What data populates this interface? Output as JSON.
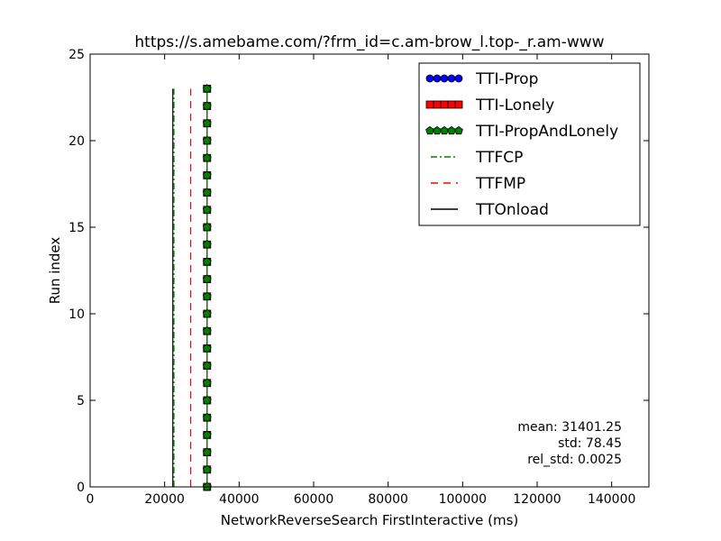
{
  "chart_data": {
    "type": "line",
    "title": "https://s.amebame.com/?frm_id=c.am-brow_l.top-_r.am-www",
    "xlabel": "NetworkReverseSearch FirstInteractive (ms)",
    "ylabel": "Run index",
    "xlim": [
      0,
      150000
    ],
    "ylim": [
      0,
      25
    ],
    "x_ticks": [
      0,
      20000,
      40000,
      60000,
      80000,
      100000,
      120000,
      140000
    ],
    "x_tick_labels": [
      "0",
      "20000",
      "40000",
      "60000",
      "80000",
      "100000",
      "120000",
      "140000"
    ],
    "y_ticks": [
      0,
      5,
      10,
      15,
      20,
      25
    ],
    "y_tick_labels": [
      "0",
      "5",
      "10",
      "15",
      "20",
      "25"
    ],
    "grid": false,
    "legend_position": "top-right",
    "run_index": [
      0,
      1,
      2,
      3,
      4,
      5,
      6,
      7,
      8,
      9,
      10,
      11,
      12,
      13,
      14,
      15,
      16,
      17,
      18,
      19,
      20,
      21,
      22,
      23
    ],
    "series": [
      {
        "name": "TTI-Prop",
        "style": "circle-markers",
        "color": "#0000ff",
        "values": [
          31400,
          31400,
          31400,
          31400,
          31400,
          31400,
          31400,
          31400,
          31400,
          31400,
          31400,
          31400,
          31400,
          31400,
          31400,
          31400,
          31400,
          31400,
          31400,
          31400,
          31400,
          31400,
          31400,
          31400
        ]
      },
      {
        "name": "TTI-Lonely",
        "style": "square-markers",
        "color": "#ff0000",
        "values": [
          31400,
          31400,
          31400,
          31400,
          31400,
          31400,
          31400,
          31400,
          31400,
          31400,
          31400,
          31400,
          31400,
          31400,
          31400,
          31400,
          31400,
          31400,
          31400,
          31400,
          31400,
          31400,
          31400,
          31400
        ]
      },
      {
        "name": "TTI-PropAndLonely",
        "style": "pentagon-markers",
        "color": "#008000",
        "values": [
          31400,
          31400,
          31400,
          31400,
          31400,
          31400,
          31400,
          31400,
          31400,
          31400,
          31400,
          31400,
          31400,
          31400,
          31400,
          31400,
          31400,
          31400,
          31400,
          31400,
          31400,
          31400,
          31400,
          31400
        ]
      },
      {
        "name": "TTFCP",
        "style": "dash-dot-line",
        "color": "#008000",
        "values": [
          22500,
          22500,
          22500,
          22500,
          22500,
          22500,
          22500,
          22500,
          22500,
          22500,
          22500,
          22500,
          22500,
          22500,
          22500,
          22500,
          22500,
          22500,
          22500,
          22500,
          22500,
          22500,
          22500,
          22500
        ]
      },
      {
        "name": "TTFMP",
        "style": "dashed-line",
        "color": "#ff0000",
        "values": [
          27000,
          27000,
          27000,
          27000,
          27000,
          27000,
          27000,
          27000,
          27000,
          27000,
          27000,
          27000,
          27000,
          27000,
          27000,
          27000,
          27000,
          27000,
          27000,
          27000,
          27000,
          27000,
          27000,
          27000
        ]
      },
      {
        "name": "TTOnload",
        "style": "solid-line",
        "color": "#000000",
        "values": [
          22200,
          22200,
          22200,
          22200,
          22200,
          22200,
          22200,
          22200,
          22200,
          22200,
          22200,
          22200,
          22200,
          22200,
          22200,
          22200,
          22200,
          22200,
          22200,
          22200,
          22200,
          22200,
          22200,
          22200
        ]
      }
    ],
    "annotations": {
      "mean": "mean: 31401.25",
      "std": "std: 78.45",
      "rel_std": "rel_std: 0.0025"
    }
  }
}
